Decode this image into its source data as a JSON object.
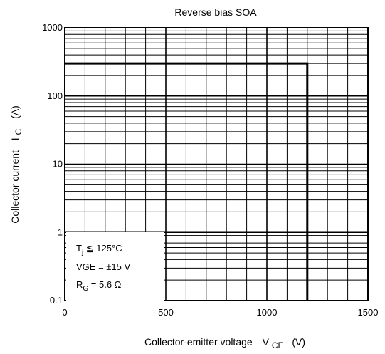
{
  "chart_data": {
    "type": "line",
    "title": "Reverse bias SOA",
    "xlabel": "Collector-emitter voltage",
    "xlabel_symbol": "V",
    "xlabel_symbol_sub": "CE",
    "xlabel_unit": "(V)",
    "ylabel": "Collector current",
    "ylabel_symbol": "I",
    "ylabel_symbol_sub": "C",
    "ylabel_unit": "(A)",
    "xlim": [
      0,
      1500
    ],
    "ylim": [
      0.1,
      1000
    ],
    "yscale": "log",
    "x_ticks": [
      0,
      500,
      1000,
      1500
    ],
    "x_tick_labels": [
      "0",
      "500",
      "1000",
      "1500"
    ],
    "y_ticks": [
      0.1,
      1,
      10,
      100,
      1000
    ],
    "y_tick_labels": [
      "0.1",
      "1",
      "10",
      "100",
      "1000"
    ],
    "x_grid_step": 100,
    "grid": true,
    "series": [
      {
        "x": [
          0,
          1200,
          1200
        ],
        "y": [
          300,
          300,
          0.1
        ]
      }
    ],
    "legend": "bottom-left",
    "conditions": [
      {
        "main": "T",
        "sub": "j",
        "rest": " ≦ 125°C"
      },
      {
        "main": "VGE = ±15 V",
        "sub": "",
        "rest": ""
      },
      {
        "main": "R",
        "sub": "G",
        "rest": " = 5.6 Ω"
      }
    ]
  }
}
